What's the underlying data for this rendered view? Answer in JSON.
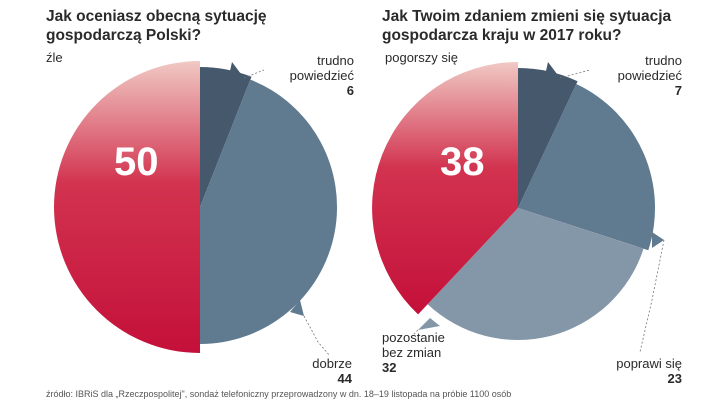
{
  "chart_data": [
    {
      "type": "pie",
      "title": [
        "Jak oceniasz obecną sytuację",
        "gospodarczą Polski?"
      ],
      "slices": [
        {
          "label": "źle",
          "value": 50,
          "color": "#c8153f"
        },
        {
          "label": "trudno powiedzieć",
          "label_lines": [
            "trudno",
            "powiedzieć"
          ],
          "value": 6,
          "color": "#46586b"
        },
        {
          "label": "dobrze",
          "value": 44,
          "color": "#607a90"
        }
      ],
      "highlight": "50"
    },
    {
      "type": "pie",
      "title": [
        "Jak Twoim zdaniem zmieni się sytuacja",
        "gospodarcza kraju w 2017 roku?"
      ],
      "slices": [
        {
          "label": "pogorszy się",
          "value": 38,
          "color": "#c8153f"
        },
        {
          "label": "trudno powiedzieć",
          "label_lines": [
            "trudno",
            "powiedzieć"
          ],
          "value": 7,
          "color": "#46586b"
        },
        {
          "label": "poprawi się",
          "value": 23,
          "color": "#607a90"
        },
        {
          "label": "pozostanie bez zmian",
          "label_lines": [
            "pozostanie",
            "bez zmian"
          ],
          "value": 32,
          "color": "#8497a8"
        }
      ],
      "highlight": "38"
    }
  ],
  "source": "źródło: IBRiS dla „Rzeczpospolitej\", sondaż telefoniczny przeprowadzony w dn. 18–19 listopada na próbie 1100 osób"
}
